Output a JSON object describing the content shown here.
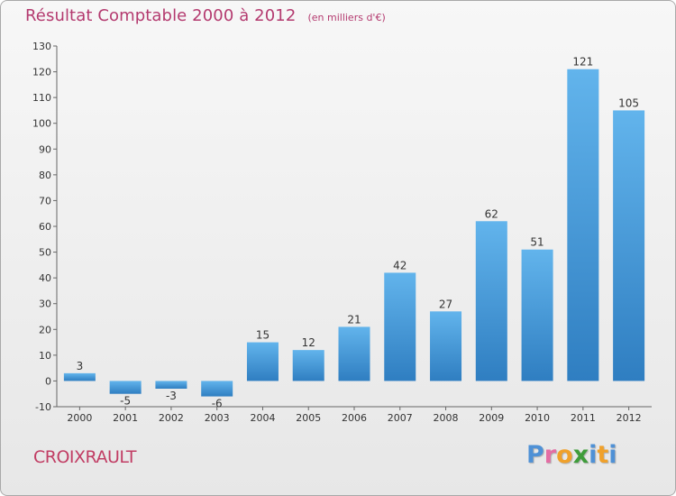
{
  "title": "Résultat Comptable 2000 à 2012",
  "subtitle": "(en milliers d'€)",
  "commune": "CROIXRAULT",
  "brand": {
    "letters": [
      "P",
      "r",
      "o",
      "x",
      "i",
      "t",
      "i"
    ],
    "colors": [
      "#4f91d6",
      "#e46da4",
      "#f0a12b",
      "#3f9d3b",
      "#4f91d6",
      "#f0a12b",
      "#4f91d6"
    ]
  },
  "colors": {
    "bar_top": "#62b4ec",
    "bar_bottom": "#2f7ec1",
    "title": "#b43a6f",
    "axis": "#666666"
  },
  "chart_data": {
    "type": "bar",
    "title": "Résultat Comptable 2000 à 2012",
    "subtitle": "(en milliers d'€)",
    "categories": [
      "2000",
      "2001",
      "2002",
      "2003",
      "2004",
      "2005",
      "2006",
      "2007",
      "2008",
      "2009",
      "2010",
      "2011",
      "2012"
    ],
    "values": [
      3,
      -5,
      -3,
      -6,
      15,
      12,
      21,
      42,
      27,
      62,
      51,
      121,
      105
    ],
    "ylim": [
      -10,
      130
    ],
    "yticks": [
      -10,
      0,
      10,
      20,
      30,
      40,
      50,
      60,
      70,
      80,
      90,
      100,
      110,
      120,
      130
    ],
    "grid": false,
    "legend": false
  }
}
